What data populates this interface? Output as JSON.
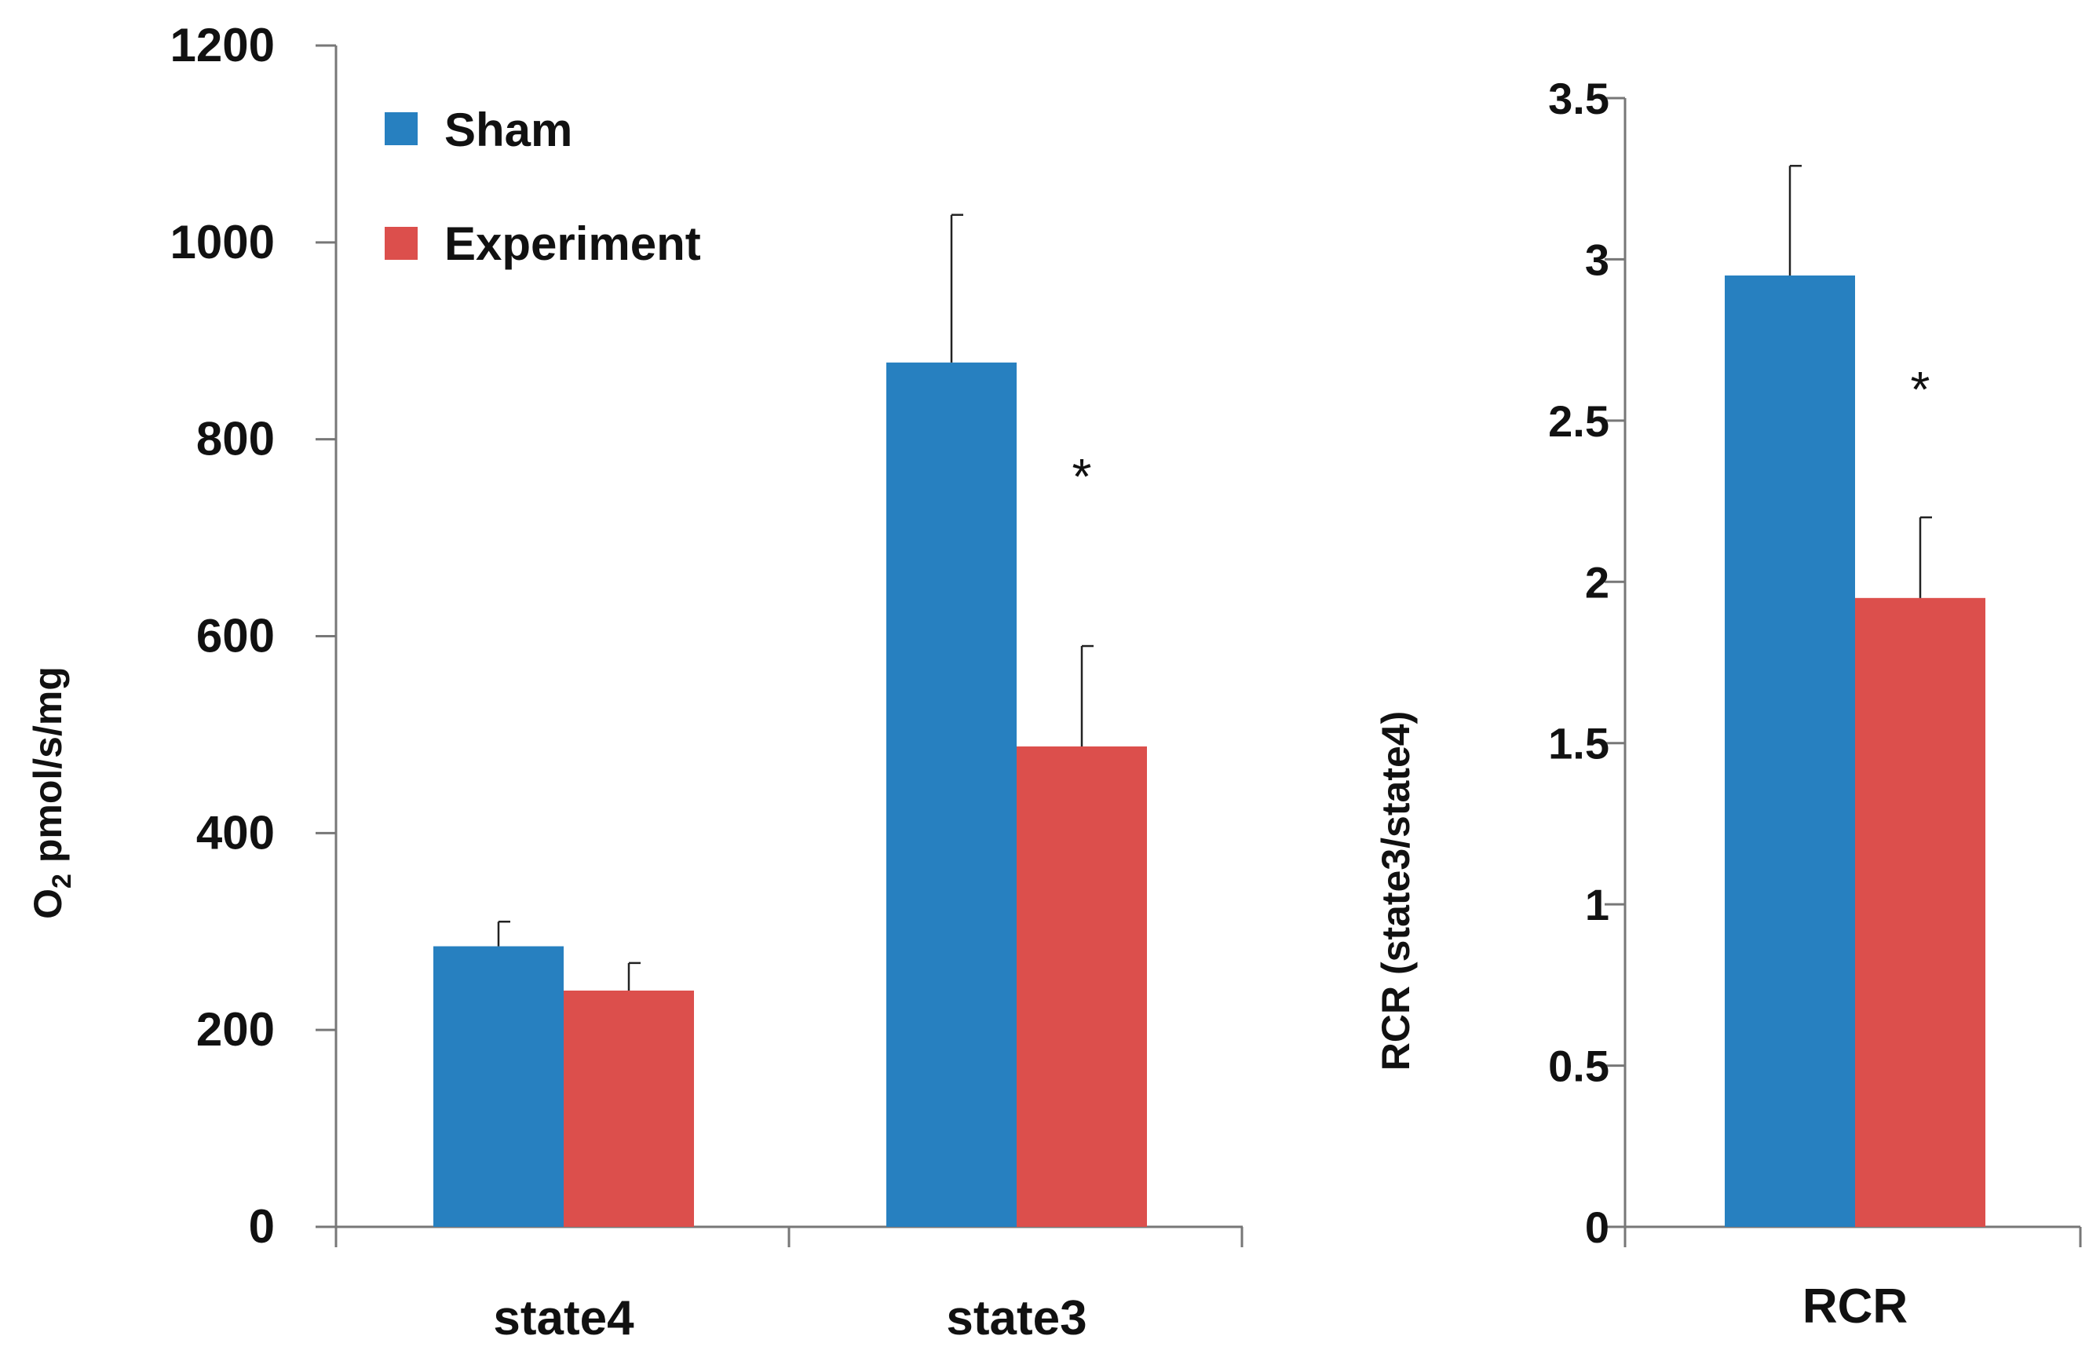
{
  "chart_data": [
    {
      "type": "bar",
      "ylabel_main": "O",
      "ylabel_sub": "2",
      "ylabel_rest": " pmol/s/mg",
      "categories": [
        "state4",
        "state3"
      ],
      "series": [
        {
          "name": "Sham",
          "color": "#2780c0",
          "values": [
            285,
            878
          ],
          "errors": [
            25,
            150
          ]
        },
        {
          "name": "Experiment",
          "color": "#dc4f4c",
          "values": [
            240,
            488
          ],
          "errors": [
            28,
            102
          ]
        }
      ],
      "ylim": [
        0,
        1200
      ],
      "yticks": [
        "0",
        "200",
        "400",
        "600",
        "800",
        "1000",
        "1200"
      ],
      "annotations": [
        {
          "category": "state3",
          "series": "Experiment",
          "text": "*",
          "y": 780
        }
      ],
      "legend": "top-left"
    },
    {
      "type": "bar",
      "ylabel": "RCR (state3/state4)",
      "categories": [
        "RCR"
      ],
      "series": [
        {
          "name": "Sham",
          "color": "#2780c0",
          "values": [
            2.95
          ],
          "errors": [
            0.34
          ]
        },
        {
          "name": "Experiment",
          "color": "#dc4f4c",
          "values": [
            1.95
          ],
          "errors": [
            0.25
          ]
        }
      ],
      "ylim": [
        0,
        3.5
      ],
      "yticks": [
        "0",
        "0.5",
        "1",
        "1.5",
        "2",
        "2.5",
        "3",
        "3.5"
      ],
      "annotations": [
        {
          "category": "RCR",
          "series": "Experiment",
          "text": "*",
          "y": 2.65
        }
      ]
    }
  ]
}
